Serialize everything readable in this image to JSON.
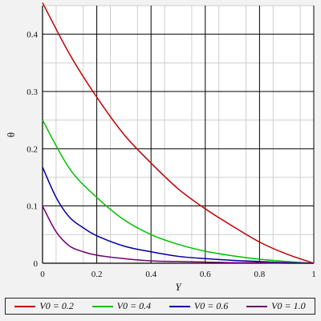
{
  "chart_data": {
    "type": "line",
    "title": "",
    "xlabel": "Y",
    "ylabel": "θ",
    "xlim": [
      0,
      1
    ],
    "ylim": [
      0,
      0.45
    ],
    "xticks": [
      0,
      0.2,
      0.4,
      0.6,
      0.8,
      1
    ],
    "xtick_labels": [
      "0",
      "0.2",
      "0.4",
      "0.6",
      "0.8",
      "1"
    ],
    "yticks": [
      0,
      0.1,
      0.2,
      0.3,
      0.4
    ],
    "ytick_labels": [
      "0",
      "0.1",
      "0.2",
      "0.3",
      "0.4"
    ],
    "grid": true,
    "legend_position": "bottom",
    "series": [
      {
        "name": "V0 = 0.2",
        "color": "#c00000",
        "x": [
          0,
          0.1,
          0.2,
          0.3,
          0.4,
          0.5,
          0.6,
          0.7,
          0.8,
          0.9,
          1.0
        ],
        "y": [
          0.455,
          0.365,
          0.29,
          0.225,
          0.175,
          0.13,
          0.095,
          0.065,
          0.037,
          0.016,
          0.0
        ]
      },
      {
        "name": "V0 = 0.4",
        "color": "#00c000",
        "x": [
          0,
          0.1,
          0.2,
          0.3,
          0.4,
          0.5,
          0.6,
          0.7,
          0.8,
          0.9,
          1.0
        ],
        "y": [
          0.25,
          0.165,
          0.115,
          0.076,
          0.05,
          0.033,
          0.021,
          0.013,
          0.007,
          0.003,
          0.0
        ]
      },
      {
        "name": "V0 = 0.6",
        "color": "#0000a0",
        "x": [
          0,
          0.05,
          0.1,
          0.15,
          0.2,
          0.3,
          0.4,
          0.5,
          0.6,
          0.7,
          0.8,
          0.9,
          1.0
        ],
        "y": [
          0.168,
          0.115,
          0.08,
          0.062,
          0.048,
          0.03,
          0.02,
          0.012,
          0.008,
          0.005,
          0.003,
          0.001,
          0.0
        ]
      },
      {
        "name": "V0 = 1.0",
        "color": "#700070",
        "x": [
          0,
          0.05,
          0.1,
          0.15,
          0.2,
          0.3,
          0.4,
          0.5,
          0.6,
          0.7,
          0.8,
          0.9,
          1.0
        ],
        "y": [
          0.1,
          0.055,
          0.03,
          0.02,
          0.014,
          0.008,
          0.004,
          0.003,
          0.002,
          0.001,
          0.001,
          0.0,
          0.0
        ]
      }
    ]
  }
}
